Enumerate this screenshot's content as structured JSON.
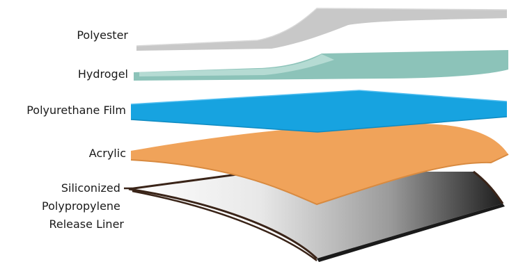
{
  "layers": [
    {
      "id": "polyester",
      "label_lines": [
        "Polyester"
      ],
      "color": "#c8c8c8"
    },
    {
      "id": "hydrogel",
      "label_lines": [
        "Hydrogel"
      ],
      "color": "#8cc3b9"
    },
    {
      "id": "polyurethane-film",
      "label_lines": [
        "Polyurethane Film"
      ],
      "color": "#17a3e0"
    },
    {
      "id": "acrylic",
      "label_lines": [
        "Acrylic"
      ],
      "color": "#f0a35a"
    },
    {
      "id": "release-liner",
      "label_lines": [
        "Siliconized",
        "Polypropylene",
        "Release Liner"
      ],
      "color": "#3a2418"
    }
  ]
}
